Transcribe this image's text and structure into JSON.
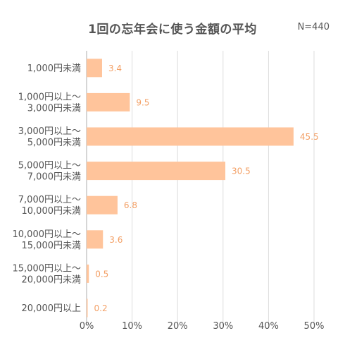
{
  "chart_data": {
    "type": "bar",
    "orientation": "horizontal",
    "title": "1回の忘年会に使う金額の平均",
    "note": "N=440",
    "categories": [
      "1,000円未満",
      "1,000円以上～\n3,000円未満",
      "3,000円以上～\n5,000円未満",
      "5,000円以上～\n7,000円未満",
      "7,000円以上～\n10,000円未満",
      "10,000円以上～\n15,000円未満",
      "15,000円以上～\n20,000円未満",
      "20,000円以上"
    ],
    "values": [
      3.4,
      9.5,
      45.5,
      30.5,
      6.8,
      3.6,
      0.5,
      0.2
    ],
    "value_labels": [
      "3.4",
      "9.5",
      "45.5",
      "30.5",
      "6.8",
      "3.6",
      "0.5",
      "0.2"
    ],
    "xlim": [
      0,
      50
    ],
    "xticks": [
      0,
      10,
      20,
      30,
      40,
      50
    ],
    "xtick_labels": [
      "0%",
      "10%",
      "20%",
      "30%",
      "40%",
      "50%"
    ],
    "grid": true,
    "bar_color": "#ffc49b",
    "value_label_color": "#f3a066",
    "grid_color": "#dddddd"
  }
}
